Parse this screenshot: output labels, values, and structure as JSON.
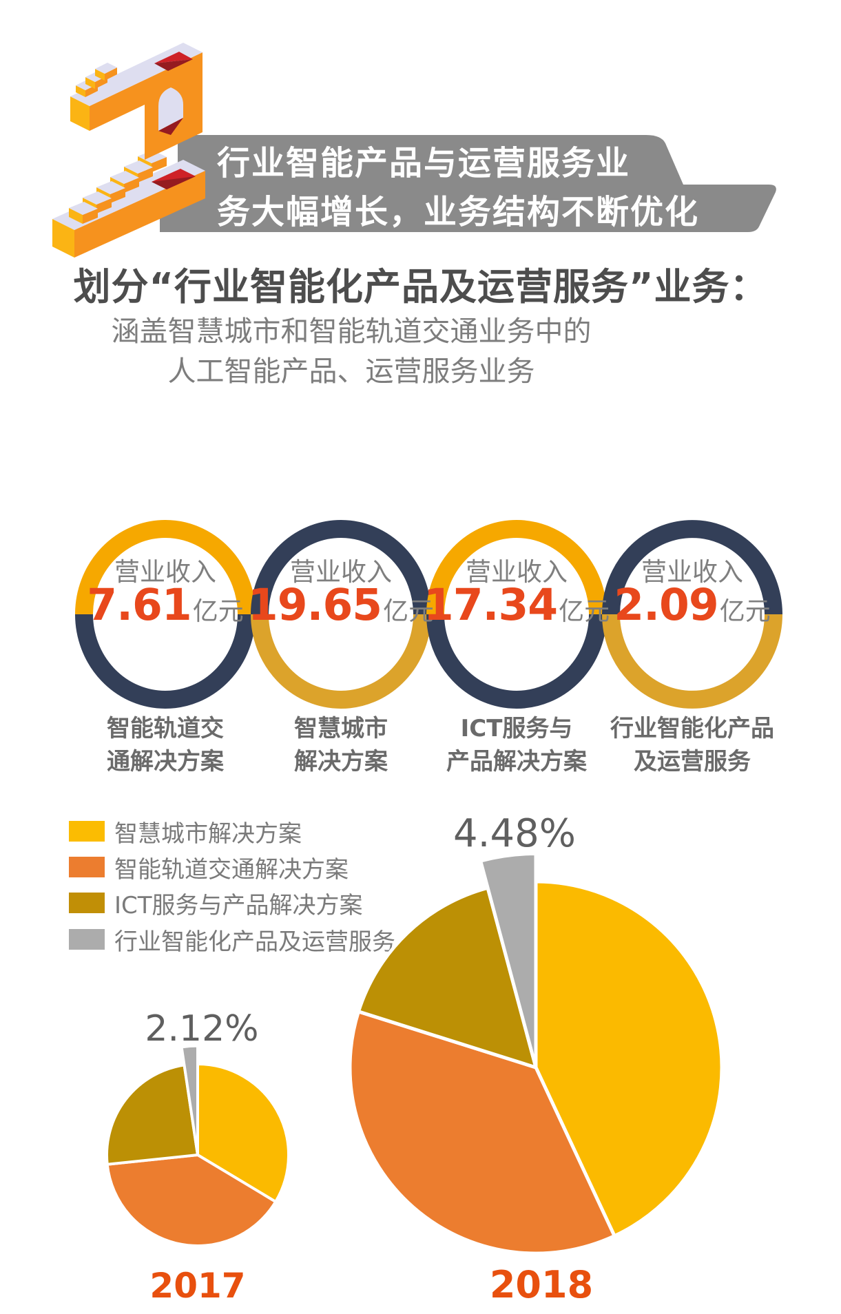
{
  "header": {
    "section_number": "2",
    "banner_line1": "行业智能产品与运营服务业",
    "banner_line2": "务大幅增长，业务结构不断优化",
    "banner_color": "#8A8A8A",
    "title": "划分“行业智能化产品及运营服务”业务：",
    "subtitle_line1": "涵盖智慧城市和智能轨道交通业务中的",
    "subtitle_line2": "人工智能产品、运营服务业务"
  },
  "revenue_rings": {
    "revenue_label": "营业收入",
    "unit": "亿元",
    "value_color": "#E8481C",
    "items": [
      {
        "value": "7.61",
        "label_line1": "智能轨道交",
        "label_line2": "通解决方案",
        "top_color": "#F6A800",
        "bottom_color": "#333F58"
      },
      {
        "value": "19.65",
        "label_line1": "智慧城市",
        "label_line2": "解决方案",
        "top_color": "#333F58",
        "bottom_color": "#DCA32B"
      },
      {
        "value": "17.34",
        "label_line1": "ICT服务与",
        "label_line2": "产品解决方案",
        "top_color": "#F6A800",
        "bottom_color": "#333F58"
      },
      {
        "value": "2.09",
        "label_line1": "行业智能化产品",
        "label_line2": "及运营服务",
        "top_color": "#333F58",
        "bottom_color": "#DCA32B"
      }
    ]
  },
  "legend": {
    "items": [
      {
        "label": "智慧城市解决方案",
        "color": "#FBBC02"
      },
      {
        "label": "智能轨道交通解决方案",
        "color": "#EC7D2F"
      },
      {
        "label": "ICT服务与产品解决方案",
        "color": "#C18F06"
      },
      {
        "label": "行业智能化产品及运营服务",
        "color": "#ACACAC"
      }
    ]
  },
  "chart_data": [
    {
      "type": "pie",
      "title": "2017",
      "callout_label": "2.12%",
      "legend_position": "top-left",
      "segments": [
        {
          "name": "smart-city",
          "label": "智慧城市解决方案",
          "color": "#FBBA00",
          "percent": 33.6,
          "start_deg": 0,
          "end_deg": 121
        },
        {
          "name": "rail-transit",
          "label": "智能轨道交通解决方案",
          "color": "#EC7D2F",
          "percent": 39.7,
          "start_deg": 121,
          "end_deg": 264
        },
        {
          "name": "ict",
          "label": "ICT服务与产品解决方案",
          "color": "#BC9005",
          "percent": 24.3,
          "start_deg": 264,
          "end_deg": 351.5
        },
        {
          "name": "industry-ai",
          "label": "行业智能化产品及运营服务",
          "color": "#ACACAC",
          "percent": 2.12,
          "start_deg": 351.5,
          "end_deg": 360,
          "radius_scale": 1.2,
          "data_label": "2.12%"
        }
      ]
    },
    {
      "type": "pie",
      "title": "2018",
      "callout_label": "4.48%",
      "legend_position": "top-left",
      "segments": [
        {
          "name": "smart-city",
          "label": "智慧城市解决方案",
          "color": "#FBBA00",
          "percent": 43.0,
          "start_deg": 0,
          "end_deg": 155
        },
        {
          "name": "rail-transit",
          "label": "智能轨道交通解决方案",
          "color": "#EC7D2F",
          "percent": 36.8,
          "start_deg": 155,
          "end_deg": 287.5
        },
        {
          "name": "ict",
          "label": "ICT服务与产品解决方案",
          "color": "#BC9005",
          "percent": 15.7,
          "start_deg": 287.5,
          "end_deg": 345
        },
        {
          "name": "industry-ai",
          "label": "行业智能化产品及运营服务",
          "color": "#ACACAC",
          "percent": 4.48,
          "start_deg": 345,
          "end_deg": 360,
          "radius_scale": 1.15,
          "data_label": "4.48%"
        }
      ]
    }
  ]
}
